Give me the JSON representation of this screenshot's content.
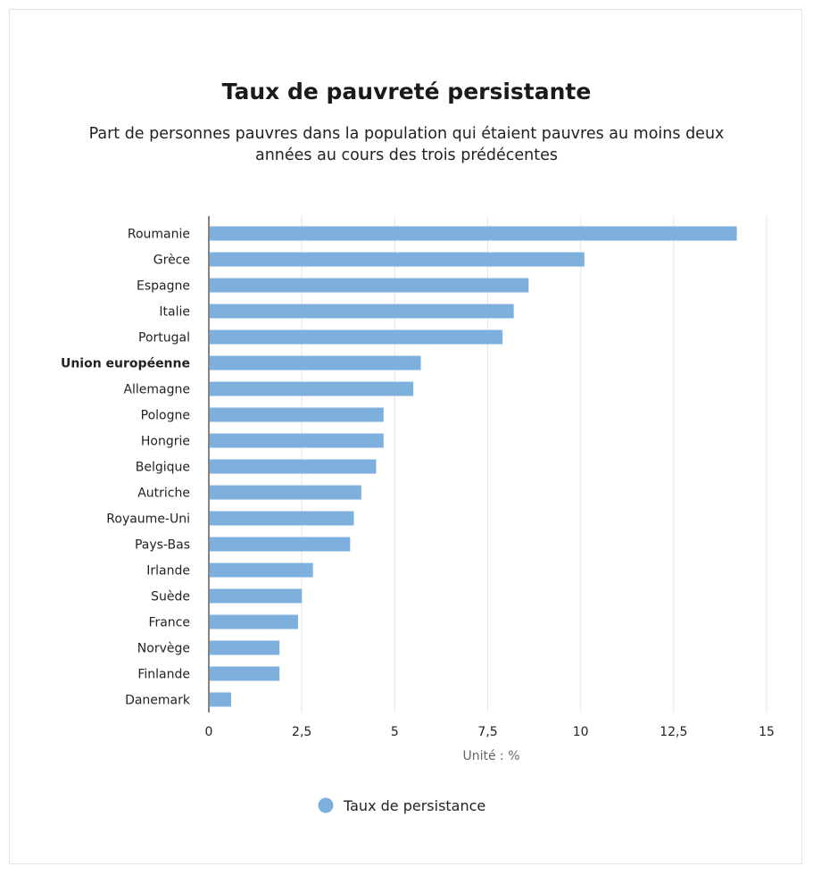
{
  "chart_data": {
    "type": "bar",
    "orientation": "horizontal",
    "title": "Taux de pauvreté persistante",
    "subtitle": "Part de personnes pauvres dans la population qui étaient pauvres au moins deux années au cours des trois prédécentes",
    "categories": [
      "Roumanie",
      "Grèce",
      "Espagne",
      "Italie",
      "Portugal",
      "Union européenne",
      "Allemagne",
      "Pologne",
      "Hongrie",
      "Belgique",
      "Autriche",
      "Royaume-Uni",
      "Pays-Bas",
      "Irlande",
      "Suède",
      "France",
      "Norvège",
      "Finlande",
      "Danemark"
    ],
    "highlight_category": "Union européenne",
    "series": [
      {
        "name": "Taux de persistance",
        "color": "#7eb0dd",
        "values": [
          14.2,
          10.1,
          8.6,
          8.2,
          7.9,
          5.7,
          5.5,
          4.7,
          4.7,
          4.5,
          4.1,
          3.9,
          3.8,
          2.8,
          2.5,
          2.4,
          1.9,
          1.9,
          0.6
        ]
      }
    ],
    "xticks": [
      "0",
      "2,5",
      "5",
      "7,5",
      "10",
      "12,5",
      "15"
    ],
    "xlim": [
      0,
      15
    ],
    "xlabel": "Unité : %",
    "grid": true,
    "legend_position": "bottom"
  }
}
